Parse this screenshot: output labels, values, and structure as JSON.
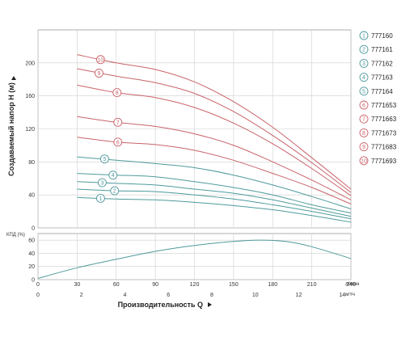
{
  "chart_data": [
    {
      "type": "line",
      "panel": "head",
      "ylabel": "Создаваемый напор H (м)",
      "ylim": [
        0,
        240
      ],
      "yticks": [
        0,
        40,
        80,
        120,
        160,
        200
      ],
      "xlim": [
        0,
        240
      ],
      "grid": true,
      "legend_position": "right",
      "series": [
        {
          "name": "777160",
          "marker": "1",
          "color": "#4f9a9c",
          "x": [
            30,
            60,
            90,
            120,
            150,
            180,
            210,
            240
          ],
          "y": [
            37,
            35,
            34,
            31,
            27,
            22,
            15,
            7
          ]
        },
        {
          "name": "777161",
          "marker": "2",
          "color": "#4f9a9c",
          "x": [
            30,
            60,
            90,
            120,
            150,
            180,
            210,
            240
          ],
          "y": [
            47,
            45,
            44,
            40,
            35,
            28,
            20,
            11
          ]
        },
        {
          "name": "777162",
          "marker": "3",
          "color": "#4f9a9c",
          "x": [
            30,
            60,
            90,
            120,
            150,
            180,
            210,
            240
          ],
          "y": [
            56,
            54,
            52,
            47,
            42,
            34,
            24,
            14
          ]
        },
        {
          "name": "777163",
          "marker": "4",
          "color": "#4f9a9c",
          "x": [
            30,
            60,
            90,
            120,
            150,
            180,
            210,
            240
          ],
          "y": [
            66,
            64,
            62,
            56,
            49,
            40,
            28,
            18
          ]
        },
        {
          "name": "777164",
          "marker": "5",
          "color": "#4f9a9c",
          "x": [
            30,
            60,
            90,
            120,
            150,
            180,
            210,
            240
          ],
          "y": [
            86,
            82,
            78,
            73,
            64,
            52,
            38,
            23
          ]
        },
        {
          "name": "7771653",
          "marker": "6",
          "color": "#c9636a",
          "x": [
            30,
            60,
            90,
            120,
            150,
            180,
            210,
            240
          ],
          "y": [
            110,
            104,
            101,
            94,
            82,
            66,
            49,
            29
          ]
        },
        {
          "name": "7771663",
          "marker": "7",
          "color": "#c9636a",
          "x": [
            30,
            60,
            90,
            120,
            150,
            180,
            210,
            240
          ],
          "y": [
            135,
            128,
            123,
            114,
            100,
            80,
            58,
            34
          ]
        },
        {
          "name": "7771673",
          "marker": "8",
          "color": "#c9636a",
          "x": [
            30,
            60,
            90,
            120,
            150,
            180,
            210,
            240
          ],
          "y": [
            173,
            164,
            158,
            146,
            127,
            102,
            72,
            39
          ]
        },
        {
          "name": "7771683",
          "marker": "9",
          "color": "#c9636a",
          "x": [
            30,
            60,
            90,
            120,
            150,
            180,
            210,
            240
          ],
          "y": [
            193,
            184,
            176,
            163,
            141,
            112,
            79,
            43
          ]
        },
        {
          "name": "7771693",
          "marker": "10",
          "color": "#c9636a",
          "x": [
            30,
            60,
            90,
            120,
            150,
            180,
            210,
            240
          ],
          "y": [
            210,
            200,
            192,
            177,
            153,
            122,
            85,
            47
          ]
        }
      ]
    },
    {
      "type": "line",
      "panel": "efficiency",
      "ylabel": "КПД (%)",
      "ylim": [
        0,
        70
      ],
      "yticks": [
        0,
        20,
        40,
        60
      ],
      "xlim": [
        0,
        240
      ],
      "grid": true,
      "x_ticks_lmin": [
        0,
        30,
        60,
        90,
        120,
        150,
        180,
        210,
        240
      ],
      "x_unit_lmin": "л/мин",
      "x_ticks_m3h": [
        0,
        2,
        4,
        6,
        8,
        10,
        12,
        14
      ],
      "x_unit_m3h": "м³/ч",
      "xlabel": "Производительность Q",
      "series": [
        {
          "name": "",
          "color": "#4f9a9c",
          "x": [
            0,
            30,
            60,
            90,
            120,
            150,
            170,
            190,
            210,
            240
          ],
          "y": [
            2,
            18,
            31,
            43,
            52,
            58,
            60,
            58,
            50,
            32
          ]
        }
      ]
    }
  ]
}
